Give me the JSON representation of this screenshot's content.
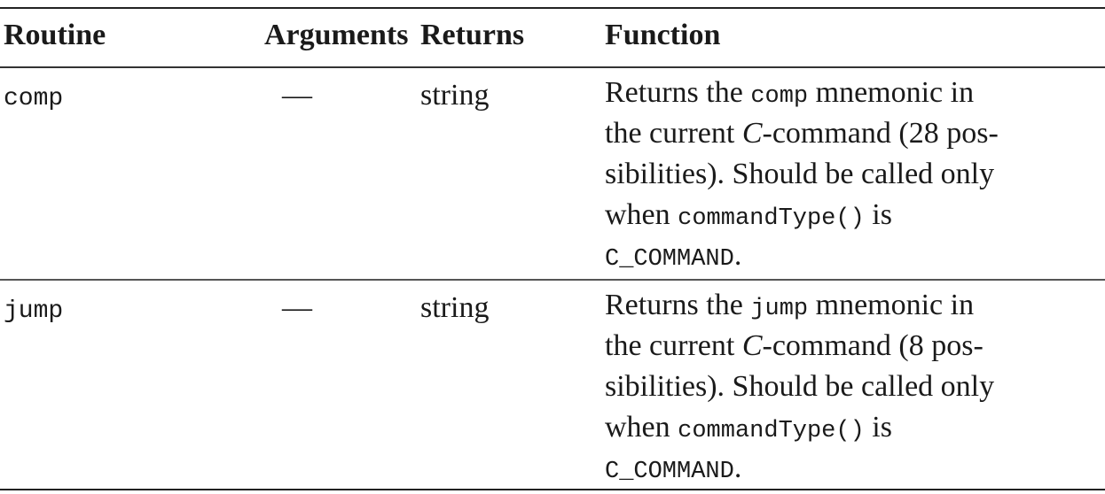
{
  "header": {
    "routine": "Routine",
    "arguments": "Arguments",
    "returns": "Returns",
    "function": "Function"
  },
  "rows": [
    {
      "routine": "comp",
      "arguments": "—",
      "returns": "string",
      "function_lines": {
        "l1_a": "Returns the ",
        "l1_code": "comp",
        "l1_b": " mnemonic in",
        "l2_a": "the current ",
        "l2_it": "C",
        "l2_b": "-command (28 pos-",
        "l3": "sibilities). Should be called only",
        "l4_a": "when ",
        "l4_code": "commandType()",
        "l4_b": " is",
        "l5_code": "C_COMMAND",
        "l5_b": "."
      }
    },
    {
      "routine": "jump",
      "arguments": "—",
      "returns": "string",
      "function_lines": {
        "l1_a": "Returns the ",
        "l1_code": "jump",
        "l1_b": " mnemonic in",
        "l2_a": "the current ",
        "l2_it": "C",
        "l2_b": "-command (8 pos-",
        "l3": "sibilities). Should be called only",
        "l4_a": "when ",
        "l4_code": "commandType()",
        "l4_b": " is",
        "l5_code": "C_COMMAND",
        "l5_b": "."
      }
    }
  ]
}
